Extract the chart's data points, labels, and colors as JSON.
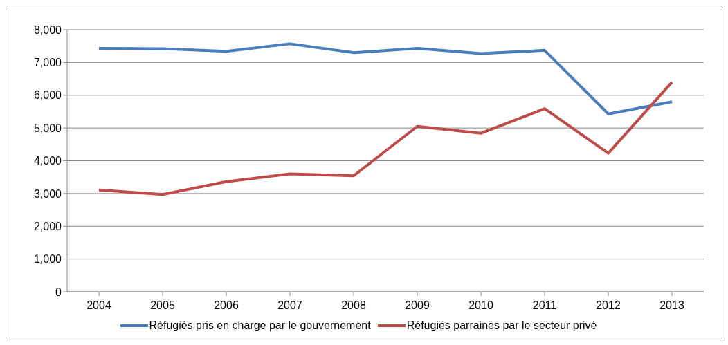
{
  "chart_data": {
    "type": "line",
    "categories": [
      "2004",
      "2005",
      "2006",
      "2007",
      "2008",
      "2009",
      "2010",
      "2011",
      "2012",
      "2013"
    ],
    "series": [
      {
        "name": "Réfugiés pris en charge par le gouvernement",
        "color": "#4a7ebb",
        "values": [
          7430,
          7420,
          7340,
          7570,
          7300,
          7430,
          7270,
          7370,
          5430,
          5800
        ]
      },
      {
        "name": "Réfugiés parrainés par le secteur privé",
        "color": "#be4b48",
        "values": [
          3110,
          2970,
          3360,
          3600,
          3540,
          5050,
          4840,
          5590,
          4230,
          6400
        ]
      }
    ],
    "ylim": [
      0,
      8000
    ],
    "yticks": [
      {
        "value": 0,
        "label": "0"
      },
      {
        "value": 1000,
        "label": "1,000"
      },
      {
        "value": 2000,
        "label": "2,000"
      },
      {
        "value": 3000,
        "label": "3,000"
      },
      {
        "value": 4000,
        "label": "4,000"
      },
      {
        "value": 5000,
        "label": "5,000"
      },
      {
        "value": 6000,
        "label": "6,000"
      },
      {
        "value": 7000,
        "label": "7,000"
      },
      {
        "value": 8000,
        "label": "8,000"
      }
    ],
    "grid": "y",
    "legend": "bottom",
    "marker": "none",
    "line_style": "solid"
  }
}
